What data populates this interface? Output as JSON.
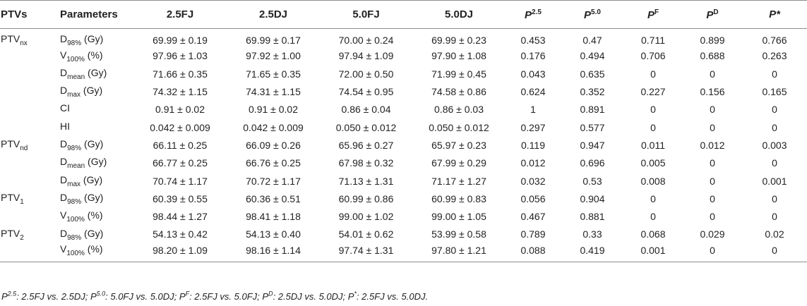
{
  "header": {
    "ptvs": "PTVs",
    "parameters": "Parameters",
    "c1": "2.5FJ",
    "c2": "2.5DJ",
    "c3": "5.0FJ",
    "c4": "5.0DJ",
    "p1_base": "P",
    "p1_sup": "2.5",
    "p2_base": "P",
    "p2_sup": "5.0",
    "p3_base": "P",
    "p3_sup": "F",
    "p4_base": "P",
    "p4_sup": "D",
    "p5": "P*"
  },
  "rows": [
    {
      "ptv_base": "PTV",
      "ptv_sub": "nx",
      "param_base": "D",
      "param_sub": "98%",
      "param_unit": " (Gy)",
      "v": [
        "69.99 ± 0.19",
        "69.99 ± 0.17",
        "70.00 ± 0.24",
        "69.99 ± 0.23",
        "0.453",
        "0.47",
        "0.711",
        "0.899",
        "0.766"
      ]
    },
    {
      "ptv_base": "",
      "ptv_sub": "",
      "param_base": "V",
      "param_sub": "100%",
      "param_unit": " (%)",
      "v": [
        "97.96 ± 1.03",
        "97.92 ± 1.00",
        "97.94 ± 1.09",
        "97.90 ± 1.08",
        "0.176",
        "0.494",
        "0.706",
        "0.688",
        "0.263"
      ]
    },
    {
      "ptv_base": "",
      "ptv_sub": "",
      "param_base": "D",
      "param_sub": "mean",
      "param_unit": " (Gy)",
      "v": [
        "71.66 ± 0.35",
        "71.65 ± 0.35",
        "72.00 ± 0.50",
        "71.99 ± 0.45",
        "0.043",
        "0.635",
        "0",
        "0",
        "0"
      ]
    },
    {
      "ptv_base": "",
      "ptv_sub": "",
      "param_base": "D",
      "param_sub": "max",
      "param_unit": " (Gy)",
      "v": [
        "74.32 ± 1.15",
        "74.31 ± 1.15",
        "74.54 ± 0.95",
        "74.58 ± 0.86",
        "0.624",
        "0.352",
        "0.227",
        "0.156",
        "0.165"
      ]
    },
    {
      "ptv_base": "",
      "ptv_sub": "",
      "param_base": "CI",
      "param_sub": "",
      "param_unit": "",
      "v": [
        "0.91 ± 0.02",
        "0.91 ± 0.02",
        "0.86 ± 0.04",
        "0.86 ± 0.03",
        "1",
        "0.891",
        "0",
        "0",
        "0"
      ]
    },
    {
      "ptv_base": "",
      "ptv_sub": "",
      "param_base": "HI",
      "param_sub": "",
      "param_unit": "",
      "v": [
        "0.042 ± 0.009",
        "0.042 ± 0.009",
        "0.050 ± 0.012",
        "0.050 ± 0.012",
        "0.297",
        "0.577",
        "0",
        "0",
        "0"
      ]
    },
    {
      "ptv_base": "PTV",
      "ptv_sub": "nd",
      "param_base": "D",
      "param_sub": "98%",
      "param_unit": " (Gy)",
      "v": [
        "66.11 ± 0.25",
        "66.09 ± 0.26",
        "65.96 ± 0.27",
        "65.97 ± 0.23",
        "0.119",
        "0.947",
        "0.011",
        "0.012",
        "0.003"
      ]
    },
    {
      "ptv_base": "",
      "ptv_sub": "",
      "param_base": "D",
      "param_sub": "mean",
      "param_unit": " (Gy)",
      "v": [
        "66.77 ± 0.25",
        "66.76 ± 0.25",
        "67.98 ± 0.32",
        "67.99 ± 0.29",
        "0.012",
        "0.696",
        "0.005",
        "0",
        "0"
      ]
    },
    {
      "ptv_base": "",
      "ptv_sub": "",
      "param_base": "D",
      "param_sub": "max",
      "param_unit": " (Gy)",
      "v": [
        "70.74 ± 1.17",
        "70.72 ± 1.17",
        "71.13 ± 1.31",
        "71.17 ± 1.27",
        "0.032",
        "0.53",
        "0.008",
        "0",
        "0.001"
      ]
    },
    {
      "ptv_base": "PTV",
      "ptv_sub": "1",
      "param_base": "D",
      "param_sub": "98%",
      "param_unit": " (Gy)",
      "v": [
        "60.39 ± 0.55",
        "60.36 ± 0.51",
        "60.99 ± 0.86",
        "60.99 ± 0.83",
        "0.056",
        "0.904",
        "0",
        "0",
        "0"
      ]
    },
    {
      "ptv_base": "",
      "ptv_sub": "",
      "param_base": "V",
      "param_sub": "100%",
      "param_unit": " (%)",
      "v": [
        "98.44 ± 1.27",
        "98.41 ± 1.18",
        "99.00 ± 1.02",
        "99.00 ± 1.05",
        "0.467",
        "0.881",
        "0",
        "0",
        "0"
      ]
    },
    {
      "ptv_base": "PTV",
      "ptv_sub": "2",
      "param_base": "D",
      "param_sub": "98%",
      "param_unit": " (Gy)",
      "v": [
        "54.13 ± 0.42",
        "54.13 ± 0.40",
        "54.01 ± 0.62",
        "53.99 ± 0.58",
        "0.789",
        "0.33",
        "0.068",
        "0.029",
        "0.02"
      ]
    },
    {
      "ptv_base": "",
      "ptv_sub": "",
      "param_base": "V",
      "param_sub": "100%",
      "param_unit": " (%)",
      "v": [
        "98.20 ± 1.09",
        "98.16 ± 1.14",
        "97.74 ± 1.31",
        "97.80 ± 1.21",
        "0.088",
        "0.419",
        "0.001",
        "0",
        "0"
      ]
    }
  ],
  "footnote": {
    "s1_base": "P",
    "s1_sup": "2.5",
    "s1_text": ": 2.5FJ vs. 2.5DJ; ",
    "s2_base": "P",
    "s2_sup": "5.0",
    "s2_text": ": 5.0FJ vs. 5.0DJ; ",
    "s3_base": "P",
    "s3_sup": "F",
    "s3_text": ": 2.5FJ vs. 5.0FJ; ",
    "s4_base": "P",
    "s4_sup": "D",
    "s4_text": ": 2.5DJ vs. 5.0DJ; ",
    "s5_base": "P",
    "s5_sup": "*",
    "s5_text": ": 2.5FJ vs. 5.0DJ."
  }
}
